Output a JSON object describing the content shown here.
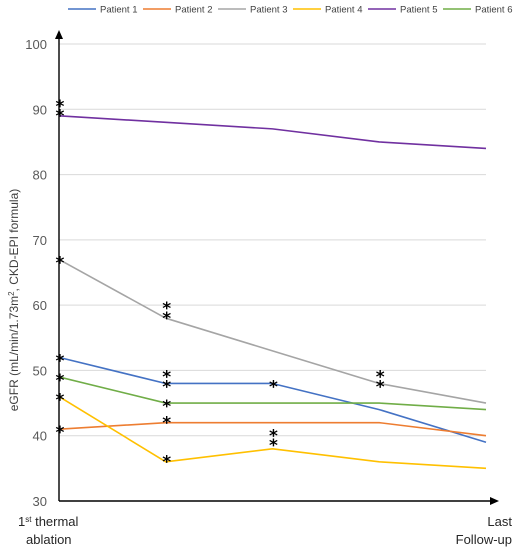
{
  "chart_data": {
    "type": "line",
    "title": "",
    "ylabel_main": "eGFR (mL/min/1.73m",
    "ylabel_sup": "2",
    "ylabel_tail": ", CKD-EPI formula)",
    "xlabel": "",
    "ylim": [
      30,
      100
    ],
    "yticks": [
      "30",
      "40",
      "50",
      "60",
      "70",
      "80",
      "90",
      "100"
    ],
    "categories": [
      {
        "line1": "1",
        "sup": "st",
        "line1_tail": " thermal",
        "line2": "ablation"
      },
      {
        "line1": "",
        "sup": "",
        "line1_tail": "",
        "line2": ""
      },
      {
        "line1": "",
        "sup": "",
        "line1_tail": "",
        "line2": ""
      },
      {
        "line1": "",
        "sup": "",
        "line1_tail": "",
        "line2": ""
      },
      {
        "line1": "Last",
        "sup": "",
        "line1_tail": "",
        "line2": "Follow-up"
      }
    ],
    "grid": true,
    "legend": "top",
    "series": [
      {
        "name": "Patient 1",
        "color": "#4472C4",
        "values": [
          52,
          48,
          48,
          44,
          39
        ],
        "marked": [
          0,
          1,
          2
        ]
      },
      {
        "name": "Patient 2",
        "color": "#ED7D31",
        "values": [
          41,
          42,
          42,
          42,
          40
        ],
        "marked": [
          0,
          1
        ]
      },
      {
        "name": "Patient 3",
        "color": "#A5A5A5",
        "values": [
          67,
          58,
          53,
          48,
          45
        ],
        "marked": [
          0,
          1,
          3
        ]
      },
      {
        "name": "Patient 4",
        "color": "#FFC000",
        "values": [
          46,
          36,
          38,
          36,
          35
        ],
        "marked": [
          0,
          1,
          2
        ]
      },
      {
        "name": "Patient 5",
        "color": "#7030A0",
        "values": [
          89,
          88,
          87,
          85,
          84
        ],
        "marked": [
          0
        ]
      },
      {
        "name": "Patient 6",
        "color": "#70AD47",
        "values": [
          49,
          45,
          45,
          45,
          44
        ],
        "marked": [
          0,
          1
        ]
      }
    ],
    "annotations": {
      "symbol": "*",
      "markers": [
        {
          "x": 0,
          "y": 52
        },
        {
          "x": 0,
          "y": 41
        },
        {
          "x": 0,
          "y": 67
        },
        {
          "x": 0,
          "y": 46
        },
        {
          "x": 0,
          "y": 91
        },
        {
          "x": 0,
          "y": 89.5
        },
        {
          "x": 0,
          "y": 49
        },
        {
          "x": 1,
          "y": 60
        },
        {
          "x": 1,
          "y": 58.5
        },
        {
          "x": 1,
          "y": 49.5
        },
        {
          "x": 1,
          "y": 48
        },
        {
          "x": 1,
          "y": 45
        },
        {
          "x": 1,
          "y": 42.5
        },
        {
          "x": 1,
          "y": 36.5
        },
        {
          "x": 2,
          "y": 48
        },
        {
          "x": 2,
          "y": 40.5
        },
        {
          "x": 2,
          "y": 39
        },
        {
          "x": 3,
          "y": 49.5
        },
        {
          "x": 3,
          "y": 48
        }
      ]
    }
  }
}
